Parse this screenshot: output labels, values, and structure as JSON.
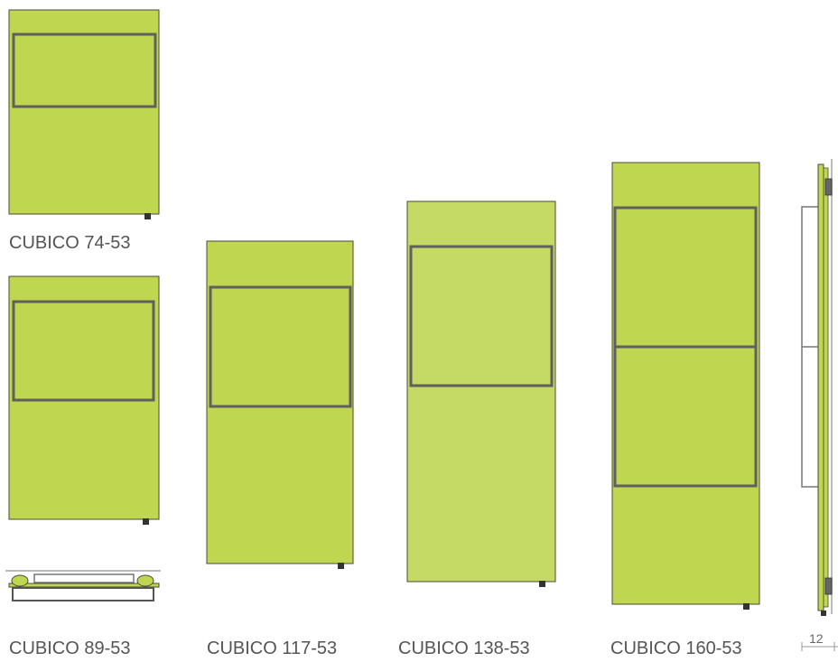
{
  "colors": {
    "panel_fill": "#bfd651",
    "panel_fill_alt": "#c4da64",
    "panel_outline": "#4a4a3a",
    "rail": "#5f5f5f",
    "foot": "#333333",
    "label_text": "#555555",
    "dim_line": "#999999"
  },
  "models": [
    {
      "label": "CUBICO 74-53"
    },
    {
      "label": "CUBICO 89-53"
    },
    {
      "label": "CUBICO 117-53"
    },
    {
      "label": "CUBICO 138-53"
    },
    {
      "label": "CUBICO 160-53"
    }
  ],
  "side_view": {
    "dimension": "12"
  }
}
